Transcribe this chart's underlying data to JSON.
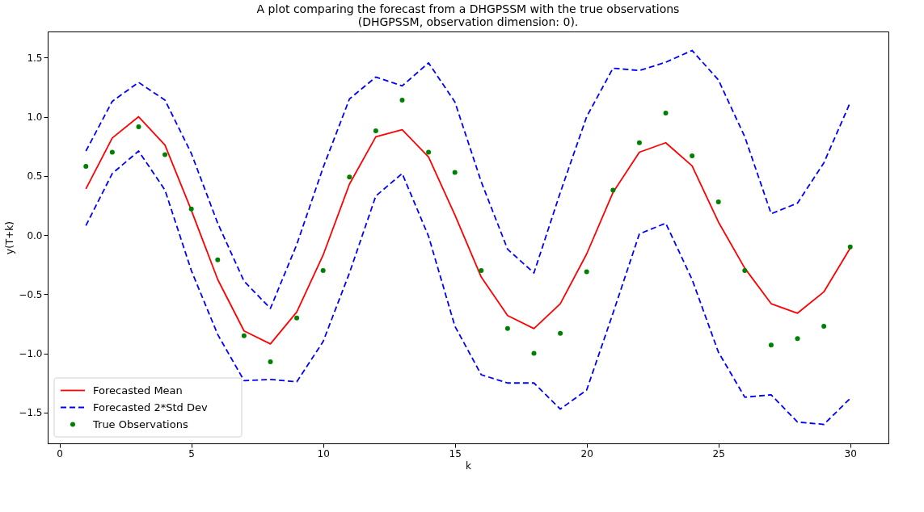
{
  "chart_data": {
    "type": "line",
    "title": "A plot comparing the forecast from a DHGPSSM with the true observations\n(DHGPSSM, observation dimension: 0).",
    "xlabel": "k",
    "ylabel": "y(T+k)",
    "x": [
      1,
      2,
      3,
      4,
      5,
      6,
      7,
      8,
      9,
      10,
      11,
      12,
      13,
      14,
      15,
      16,
      17,
      18,
      19,
      20,
      21,
      22,
      23,
      24,
      25,
      26,
      27,
      28,
      29,
      30
    ],
    "series": [
      {
        "name": "Forecasted Mean",
        "color": "#ff0000",
        "line_style": "solid",
        "values": [
          0.39,
          0.82,
          1.0,
          0.76,
          0.21,
          -0.375,
          -0.81,
          -0.92,
          -0.65,
          -0.17,
          0.43,
          0.83,
          0.89,
          0.66,
          0.17,
          -0.355,
          -0.68,
          -0.79,
          -0.58,
          -0.16,
          0.36,
          0.7,
          0.78,
          0.585,
          0.11,
          -0.28,
          -0.58,
          -0.66,
          -0.48,
          -0.11
        ]
      },
      {
        "name": "Forecasted 2*Std Dev",
        "color": "#0000ff",
        "line_style": "dashed",
        "values": [
          0.71,
          1.13,
          1.29,
          1.14,
          0.69,
          0.1,
          -0.39,
          -0.62,
          -0.08,
          0.57,
          1.15,
          1.335,
          1.26,
          1.455,
          1.125,
          0.45,
          -0.12,
          -0.32,
          0.36,
          1.0,
          1.41,
          1.39,
          1.46,
          1.56,
          1.31,
          0.83,
          0.18,
          0.27,
          0.61,
          1.12
        ]
      },
      {
        "color": "#0000ff",
        "line_style": "dashed",
        "values": [
          0.08,
          0.52,
          0.71,
          0.38,
          -0.3,
          -0.84,
          -1.23,
          -1.22,
          -1.24,
          -0.9,
          -0.32,
          0.33,
          0.52,
          -0.01,
          -0.77,
          -1.18,
          -1.25,
          -1.25,
          -1.47,
          -1.31,
          -0.66,
          0.01,
          0.1,
          -0.375,
          -0.99,
          -1.37,
          -1.35,
          -1.58,
          -1.6,
          -1.38
        ]
      },
      {
        "name": "True Observations",
        "type": "scatter",
        "marker": "circle",
        "color": "#008000",
        "values": [
          0.58,
          0.7,
          0.915,
          0.68,
          0.22,
          -0.21,
          -0.85,
          -1.07,
          -0.7,
          -0.3,
          0.49,
          0.88,
          1.14,
          0.7,
          0.53,
          -0.3,
          -0.79,
          -1.0,
          -0.83,
          -0.31,
          0.38,
          0.78,
          1.03,
          0.67,
          0.28,
          -0.3,
          -0.93,
          -0.875,
          -0.77,
          -0.1
        ]
      }
    ],
    "xlim": [
      -0.45,
      31.45
    ],
    "ylim": [
      -1.76,
      1.72
    ],
    "xticks": [
      0,
      5,
      10,
      15,
      20,
      25,
      30
    ],
    "yticks": [
      {
        "value": -1.5,
        "label": "−1.5"
      },
      {
        "value": -1.0,
        "label": "−1.0"
      },
      {
        "value": -0.5,
        "label": "−0.5"
      },
      {
        "value": 0.0,
        "label": "0.0"
      },
      {
        "value": 0.5,
        "label": "0.5"
      },
      {
        "value": 1.0,
        "label": "1.0"
      },
      {
        "value": 1.5,
        "label": "1.5"
      }
    ],
    "grid": false,
    "legend": "bottom left"
  }
}
